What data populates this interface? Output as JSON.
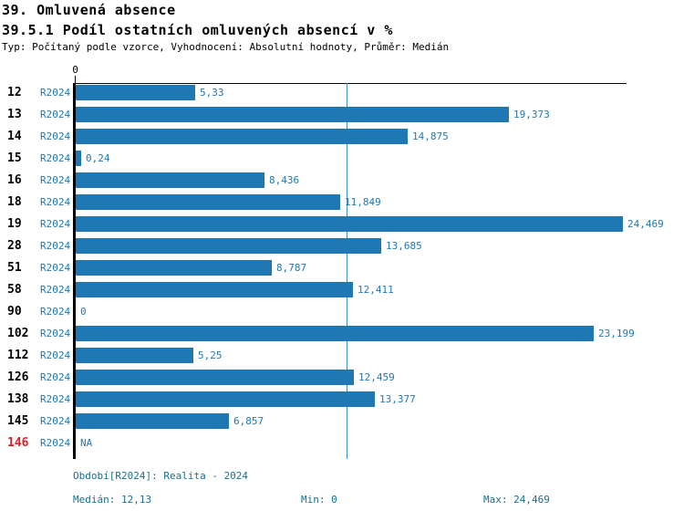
{
  "header": {
    "title": "39. Omluvená absence",
    "subtitle": "39.5.1 Podíl ostatních omluvených absencí v %",
    "meta": "Typ: Počítaný podle vzorce, Vyhodnocení: Absolutní hodnoty, Průměr: Medián"
  },
  "chart_data": {
    "type": "bar",
    "orientation": "horizontal",
    "title": "39.5.1 Podíl ostatních omluvených absencí v %",
    "series_name": "R2024",
    "categories": [
      "12",
      "13",
      "14",
      "15",
      "16",
      "18",
      "19",
      "28",
      "51",
      "58",
      "90",
      "102",
      "112",
      "126",
      "138",
      "145",
      "146"
    ],
    "values": [
      5.33,
      19.373,
      14.875,
      0.24,
      8.436,
      11.849,
      24.469,
      13.685,
      8.787,
      12.411,
      0,
      23.199,
      5.25,
      12.459,
      13.377,
      6.857,
      null
    ],
    "value_labels": [
      "5,33",
      "19,373",
      "14,875",
      "0,24",
      "8,436",
      "11,849",
      "24,469",
      "13,685",
      "8,787",
      "12,411",
      "0",
      "23,199",
      "5,25",
      "12,459",
      "13,377",
      "6,857",
      "NA"
    ],
    "missing_categories": [
      "146"
    ],
    "x_axis": {
      "tick_labels": [
        "0"
      ],
      "range": [
        0,
        24.65
      ]
    },
    "median_line_value": 12.13,
    "grid": false,
    "legend_position": "none",
    "stats": {
      "median": 12.13,
      "min": 0,
      "max": 24.469
    }
  },
  "footer": {
    "period": "Období[R2024]: Realita - 2024",
    "median": "Medián: 12,13",
    "min": "Min: 0",
    "max": "Max: 24,469"
  },
  "colors": {
    "bar": "#1f77b4",
    "value_label": "#1f77b4",
    "series_label": "#1f77b4",
    "category_label": "#000000",
    "missing_category_label": "#e11d28",
    "footer_text": "#17708c",
    "axis": "#000000",
    "median_line": "#3d8ec4"
  }
}
